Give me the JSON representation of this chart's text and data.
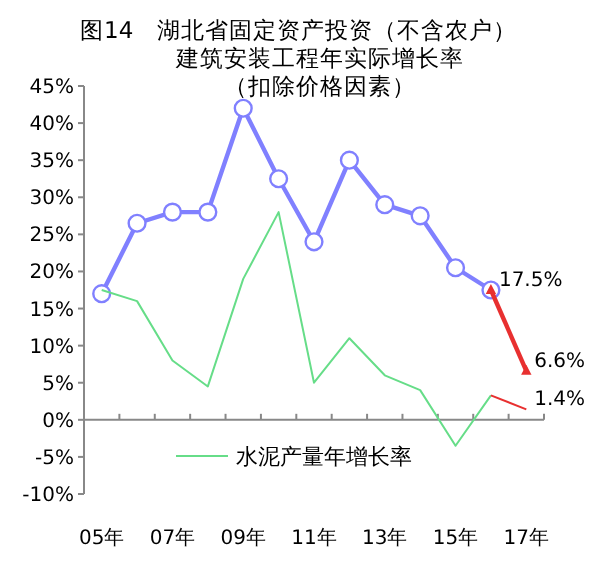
{
  "chart_data": {
    "type": "line",
    "title": "图14　湖北省固定资产投资（不含农户）建筑安装工程年实际增长率",
    "subtitle": "（扣除价格因素）",
    "categories": [
      "05年",
      null,
      "07年",
      null,
      "09年",
      null,
      "11年",
      null,
      "13年",
      null,
      "15年",
      null,
      "17年"
    ],
    "series": [
      {
        "color": "#8080ff",
        "marker": "circle",
        "values": [
          17,
          26.5,
          28,
          28,
          42,
          32.5,
          24,
          35,
          29,
          27.5,
          20.5,
          17.5,
          null
        ]
      },
      {
        "name": "水泥产量年增长率",
        "color": "#66dd88",
        "marker": "none",
        "values": [
          17.5,
          16,
          8,
          4.5,
          19,
          28,
          5,
          11,
          6,
          4,
          -3.5,
          3.3,
          null
        ]
      },
      {
        "color": "#e83030",
        "marker": "triangle",
        "values": [
          null,
          null,
          null,
          null,
          null,
          null,
          null,
          null,
          null,
          null,
          null,
          17.5,
          6.6
        ]
      },
      {
        "color": "#e83030",
        "marker": "none",
        "values": [
          null,
          null,
          null,
          null,
          null,
          null,
          null,
          null,
          null,
          null,
          null,
          3.3,
          1.4
        ]
      }
    ],
    "ylim": [
      -10,
      45
    ],
    "yticks": [
      {
        "value": -10,
        "label": "-10%"
      },
      {
        "value": -5,
        "label": "-5%"
      },
      {
        "value": 0,
        "label": "0%"
      },
      {
        "value": 5,
        "label": "5%"
      },
      {
        "value": 10,
        "label": "10%"
      },
      {
        "value": 15,
        "label": "15%"
      },
      {
        "value": 20,
        "label": "20%"
      },
      {
        "value": 25,
        "label": "25%"
      },
      {
        "value": 30,
        "label": "30%"
      },
      {
        "value": 35,
        "label": "35%"
      },
      {
        "value": 40,
        "label": "40%"
      },
      {
        "value": 45,
        "label": "45%"
      }
    ],
    "annotations": [
      "17.5%",
      {
        "text": "6.6%",
        "x": "17年",
        "y": 6.6
      },
      {
        "text": "1.4%",
        "x": "17年",
        "y": 1.4
      }
    ],
    "legend": "bottom"
  }
}
